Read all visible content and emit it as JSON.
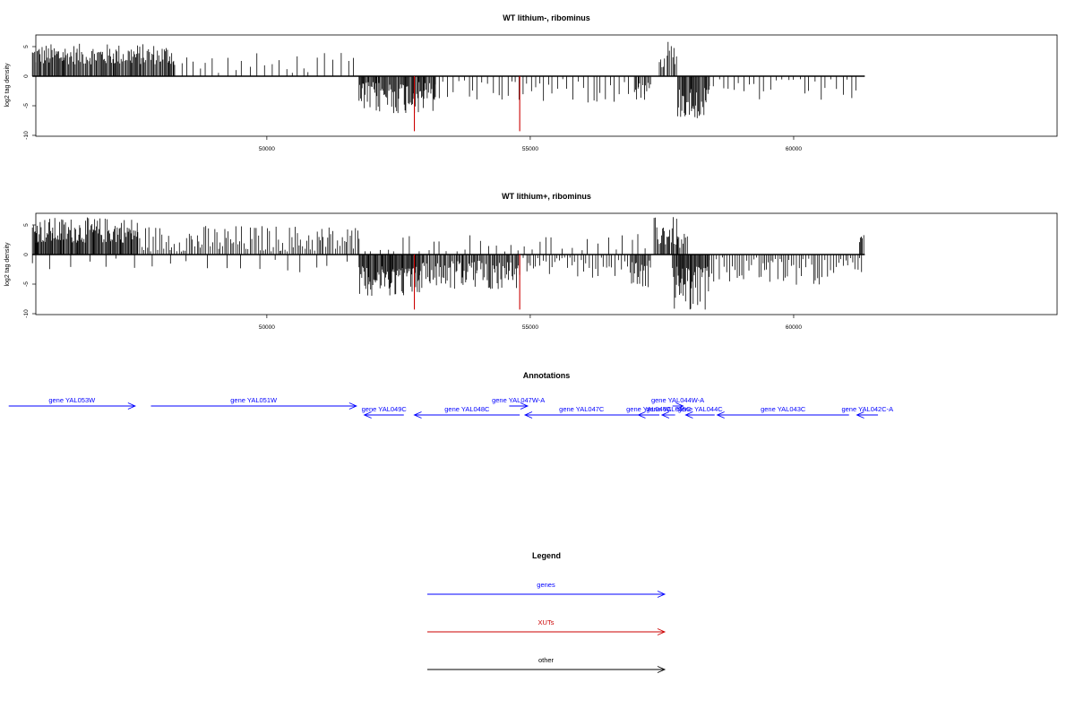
{
  "chart_data": [
    {
      "type": "bar",
      "title": "WT lithium-, ribominus",
      "xlabel": "",
      "ylabel": "log2 tag density",
      "xlim": [
        45700,
        65000
      ],
      "ylim": [
        -10,
        7
      ],
      "xticks": [
        50000,
        55000,
        60000
      ],
      "xtick_labels": [
        "50000",
        "55000",
        "60000"
      ],
      "yticks": [
        -10,
        -5,
        0,
        5
      ],
      "ytick_labels": [
        "-10",
        "-5",
        "0",
        "5"
      ],
      "positive_regions": [
        {
          "start": 45550,
          "end": 48250,
          "min": 2,
          "max": 5.5,
          "density": 0.8
        },
        {
          "start": 48250,
          "end": 51750,
          "min": 0.5,
          "max": 4,
          "density": 0.12
        },
        {
          "start": 57450,
          "end": 57550,
          "min": 1.5,
          "max": 3,
          "density": 0.6
        },
        {
          "start": 57600,
          "end": 57800,
          "min": 2,
          "max": 6.2,
          "density": 0.6
        }
      ],
      "negative_regions": [
        {
          "start": 51750,
          "end": 53200,
          "min": 1,
          "max": 6.5,
          "density": 0.85
        },
        {
          "start": 53200,
          "end": 57200,
          "min": 0.5,
          "max": 4.5,
          "density": 0.18
        },
        {
          "start": 57000,
          "end": 57300,
          "min": 1,
          "max": 4,
          "density": 0.6
        },
        {
          "start": 57800,
          "end": 58400,
          "min": 2,
          "max": 7.3,
          "density": 0.85
        },
        {
          "start": 58400,
          "end": 61300,
          "min": 0.5,
          "max": 4.5,
          "density": 0.15
        }
      ],
      "highlight_lines": [
        {
          "x": 52800,
          "y": -9.3,
          "color": "#cc0000"
        },
        {
          "x": 54800,
          "y": -9.3,
          "color": "#cc0000"
        }
      ],
      "baseline": {
        "start": 45550,
        "end": 61350
      }
    },
    {
      "type": "bar",
      "title": "WT lithium+, ribominus",
      "xlabel": "",
      "ylabel": "log2 tag density",
      "xlim": [
        45700,
        65000
      ],
      "ylim": [
        -10,
        7
      ],
      "xticks": [
        50000,
        55000,
        60000
      ],
      "xtick_labels": [
        "50000",
        "55000",
        "60000"
      ],
      "yticks": [
        -10,
        -5,
        0,
        5
      ],
      "ytick_labels": [
        "-10",
        "-5",
        "0",
        "5"
      ],
      "positive_regions": [
        {
          "start": 45550,
          "end": 47550,
          "min": 2,
          "max": 6.3,
          "density": 0.9
        },
        {
          "start": 47550,
          "end": 51750,
          "min": 0.5,
          "max": 5,
          "density": 0.4
        },
        {
          "start": 51750,
          "end": 57200,
          "min": 0.5,
          "max": 3.5,
          "density": 0.1
        },
        {
          "start": 57350,
          "end": 57800,
          "min": 1.5,
          "max": 6.4,
          "density": 0.7
        },
        {
          "start": 57800,
          "end": 58000,
          "min": 1,
          "max": 3.5,
          "density": 0.5
        },
        {
          "start": 61250,
          "end": 61350,
          "min": 1,
          "max": 3.8,
          "density": 0.6
        }
      ],
      "negative_regions": [
        {
          "start": 45550,
          "end": 51750,
          "min": 0.5,
          "max": 3,
          "density": 0.05
        },
        {
          "start": 51750,
          "end": 52900,
          "min": 2,
          "max": 7,
          "density": 0.95
        },
        {
          "start": 52900,
          "end": 54800,
          "min": 1,
          "max": 6,
          "density": 0.7
        },
        {
          "start": 54800,
          "end": 56900,
          "min": 0.5,
          "max": 4,
          "density": 0.3
        },
        {
          "start": 56900,
          "end": 57300,
          "min": 1,
          "max": 6,
          "density": 0.8
        },
        {
          "start": 57700,
          "end": 58400,
          "min": 2,
          "max": 9.4,
          "density": 0.95
        },
        {
          "start": 58400,
          "end": 61300,
          "min": 0.5,
          "max": 5.2,
          "density": 0.35
        }
      ],
      "highlight_lines": [
        {
          "x": 52800,
          "y": -9.3,
          "color": "#cc0000"
        },
        {
          "x": 54800,
          "y": -9.3,
          "color": "#cc0000"
        }
      ],
      "baseline": {
        "start": 45550,
        "end": 61350
      }
    }
  ],
  "annotations": {
    "title": "Annotations",
    "color": "#0000ff",
    "genes": [
      {
        "label": "gene YAL053W",
        "start": 45100,
        "end": 47500,
        "strand": "+",
        "row": 0
      },
      {
        "label": "gene YAL051W",
        "start": 47800,
        "end": 51700,
        "strand": "+",
        "row": 0
      },
      {
        "label": "gene YAL049C",
        "start": 51850,
        "end": 52600,
        "strand": "-",
        "row": 1
      },
      {
        "label": "gene YAL048C",
        "start": 52800,
        "end": 54800,
        "strand": "-",
        "row": 1
      },
      {
        "label": "gene YAL047W-A",
        "start": 54600,
        "end": 54950,
        "strand": "+",
        "row": 0
      },
      {
        "label": "gene YAL047C",
        "start": 54900,
        "end": 57050,
        "strand": "-",
        "row": 1
      },
      {
        "label": "gene YAL046C",
        "start": 57050,
        "end": 57450,
        "strand": "-",
        "row": 1
      },
      {
        "label": "gene YAL045C",
        "start": 57500,
        "end": 57750,
        "strand": "-",
        "row": 1
      },
      {
        "label": "gene YAL044W-A",
        "start": 57700,
        "end": 57900,
        "strand": "+",
        "row": 0
      },
      {
        "label": "gene YAL044C",
        "start": 57950,
        "end": 58500,
        "strand": "-",
        "row": 1
      },
      {
        "label": "gene YAL043C",
        "start": 58550,
        "end": 61050,
        "strand": "-",
        "row": 1
      },
      {
        "label": "gene YAL042C-A",
        "start": 61200,
        "end": 61600,
        "strand": "-",
        "row": 1
      }
    ]
  },
  "legend": {
    "title": "Legend",
    "items": [
      {
        "label": "genes",
        "color": "#0000ff"
      },
      {
        "label": "XUTs",
        "color": "#cc0000"
      },
      {
        "label": "other",
        "color": "#000000"
      }
    ]
  }
}
